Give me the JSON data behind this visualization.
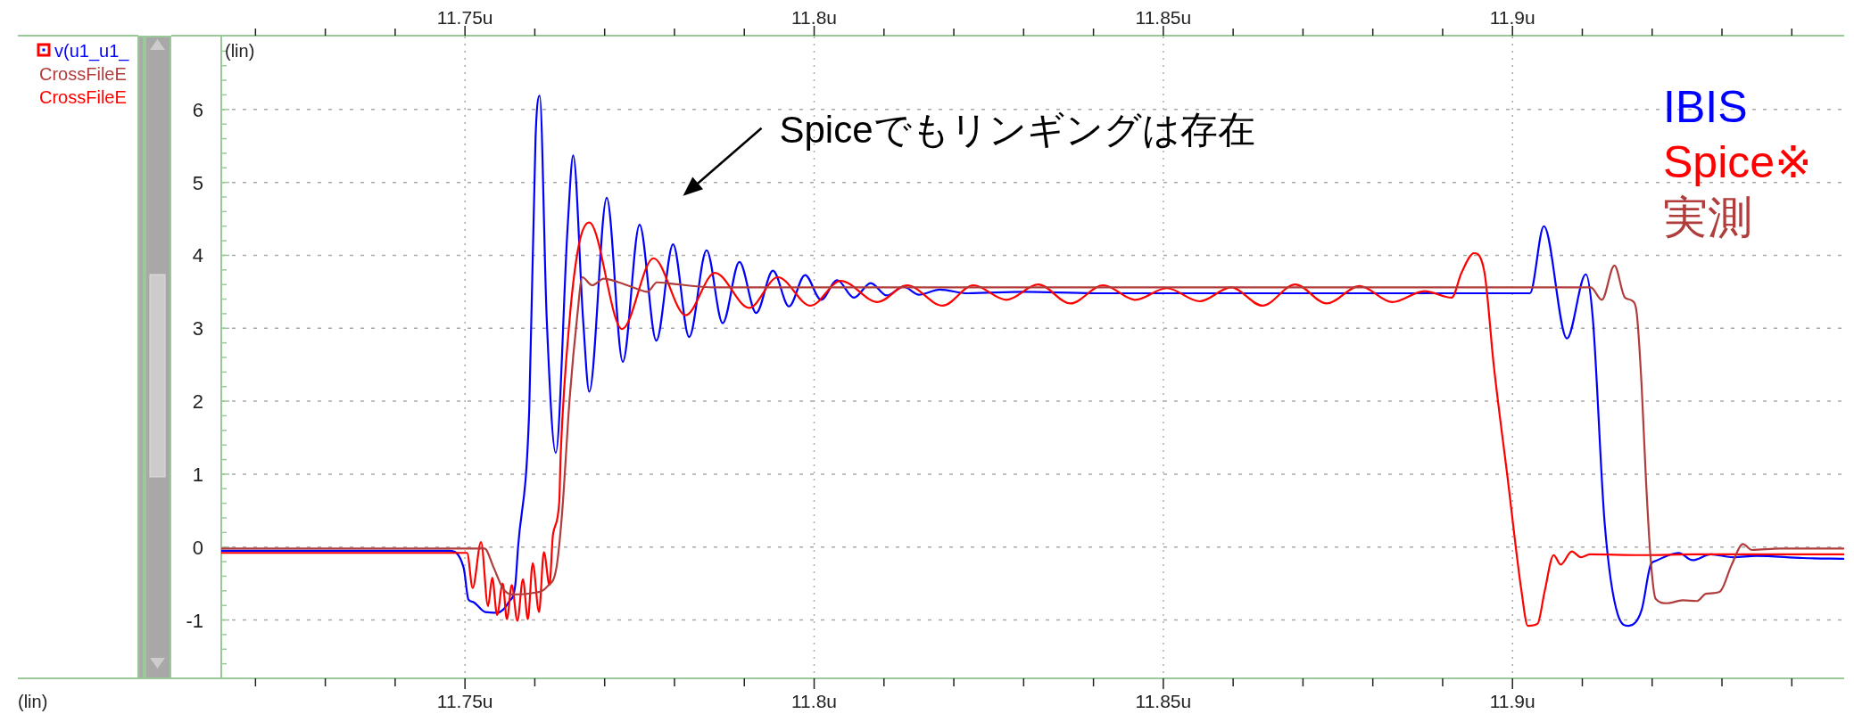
{
  "chart_data": {
    "type": "line",
    "ylabel": "(lin)",
    "xlim": [
      11.7151,
      11.9475
    ],
    "x2lim": [
      11.7151,
      11.9475
    ],
    "ylim": [
      -1.8,
      7.0
    ],
    "xticks": [
      {
        "value": 11.72,
        "label": null
      },
      {
        "value": 11.73,
        "label": null
      },
      {
        "value": 11.74,
        "label": null
      },
      {
        "value": 11.75,
        "label": "11.75u"
      },
      {
        "value": 11.76,
        "label": null
      },
      {
        "value": 11.77,
        "label": null
      },
      {
        "value": 11.78,
        "label": null
      },
      {
        "value": 11.79,
        "label": null
      },
      {
        "value": 11.8,
        "label": "11.8u"
      },
      {
        "value": 11.81,
        "label": null
      },
      {
        "value": 11.82,
        "label": null
      },
      {
        "value": 11.83,
        "label": null
      },
      {
        "value": 11.84,
        "label": null
      },
      {
        "value": 11.85,
        "label": "11.85u"
      },
      {
        "value": 11.86,
        "label": null
      },
      {
        "value": 11.87,
        "label": null
      },
      {
        "value": 11.88,
        "label": null
      },
      {
        "value": 11.89,
        "label": null
      },
      {
        "value": 11.9,
        "label": "11.9u"
      },
      {
        "value": 11.91,
        "label": null
      },
      {
        "value": 11.92,
        "label": null
      },
      {
        "value": 11.93,
        "label": null
      },
      {
        "value": 11.94,
        "label": null
      }
    ],
    "x2ticks": [
      {
        "value": 11.72,
        "label": null
      },
      {
        "value": 11.73,
        "label": null
      },
      {
        "value": 11.74,
        "label": null
      },
      {
        "value": 11.75,
        "label": "11.75u"
      },
      {
        "value": 11.76,
        "label": null
      },
      {
        "value": 11.77,
        "label": null
      },
      {
        "value": 11.78,
        "label": null
      },
      {
        "value": 11.79,
        "label": null
      },
      {
        "value": 11.8,
        "label": "11.8u"
      },
      {
        "value": 11.81,
        "label": null
      },
      {
        "value": 11.82,
        "label": null
      },
      {
        "value": 11.83,
        "label": null
      },
      {
        "value": 11.84,
        "label": null
      },
      {
        "value": 11.85,
        "label": "11.85u"
      },
      {
        "value": 11.86,
        "label": null
      },
      {
        "value": 11.87,
        "label": null
      },
      {
        "value": 11.88,
        "label": null
      },
      {
        "value": 11.89,
        "label": null
      },
      {
        "value": 11.9,
        "label": "11.9u"
      },
      {
        "value": 11.91,
        "label": null
      },
      {
        "value": 11.92,
        "label": null
      },
      {
        "value": 11.93,
        "label": null
      },
      {
        "value": 11.94,
        "label": null
      }
    ],
    "yticks": [
      {
        "value": -1.8,
        "label": null
      },
      {
        "value": -1.6,
        "label": null
      },
      {
        "value": -1.4,
        "label": null
      },
      {
        "value": -1.2,
        "label": null
      },
      -1,
      {
        "value": -0.8,
        "label": null
      },
      {
        "value": -0.6,
        "label": null
      },
      {
        "value": -0.4,
        "label": null
      },
      {
        "value": -0.2,
        "label": null
      },
      0,
      {
        "value": 0.2,
        "label": null
      },
      {
        "value": 0.4,
        "label": null
      },
      {
        "value": 0.6,
        "label": null
      },
      {
        "value": 0.8,
        "label": null
      },
      1,
      {
        "value": 1.2,
        "label": null
      },
      {
        "value": 1.4,
        "label": null
      },
      {
        "value": 1.6,
        "label": null
      },
      {
        "value": 1.8,
        "label": null
      },
      2,
      {
        "value": 2.2,
        "label": null
      },
      {
        "value": 2.4,
        "label": null
      },
      {
        "value": 2.6,
        "label": null
      },
      {
        "value": 2.8,
        "label": null
      },
      3,
      {
        "value": 3.2,
        "label": null
      },
      {
        "value": 3.4,
        "label": null
      },
      {
        "value": 3.6,
        "label": null
      },
      {
        "value": 3.8,
        "label": null
      },
      4,
      {
        "value": 4.2,
        "label": null
      },
      {
        "value": 4.4,
        "label": null
      },
      {
        "value": 4.6,
        "label": null
      },
      {
        "value": 4.8,
        "label": null
      },
      5,
      {
        "value": 5.2,
        "label": null
      },
      {
        "value": 5.4,
        "label": null
      },
      {
        "value": 5.6,
        "label": null
      },
      {
        "value": 5.8,
        "label": null
      },
      6,
      {
        "value": 6.2,
        "label": null
      },
      {
        "value": 6.4,
        "label": null
      },
      {
        "value": 6.6,
        "label": null
      },
      {
        "value": 6.8,
        "label": null
      }
    ],
    "grid": true,
    "legend": "right",
    "line_style": "solid",
    "series": [
      {
        "name": "IBIS",
        "color": "#0000ff",
        "x": [
          11.7151,
          11.7477,
          11.7498,
          11.7505,
          11.7511,
          11.7529,
          11.7546,
          11.7563,
          11.7572,
          11.7576,
          11.7592,
          11.7601,
          11.7607,
          11.7617,
          11.763,
          11.7647,
          11.7655,
          11.7669,
          11.7678,
          11.7703,
          11.7726,
          11.775,
          11.7774,
          11.7798,
          11.7821,
          11.7846,
          11.7869,
          11.7893,
          11.7917,
          11.7941,
          11.7964,
          11.7987,
          11.801,
          11.8033,
          11.8057,
          11.8081,
          11.8104,
          11.8128,
          11.815,
          11.818,
          11.822,
          11.83,
          11.84,
          11.9025,
          11.9045,
          11.9078,
          11.9105,
          11.9115,
          11.9132,
          11.9151,
          11.9166,
          11.9185,
          11.9198,
          11.9205,
          11.9238,
          11.9258,
          11.9284,
          11.9316,
          11.9349,
          11.9416,
          11.9474
        ],
        "values": [
          -0.05,
          -0.05,
          -0.28,
          -0.72,
          -0.75,
          -0.89,
          -0.9,
          -0.75,
          -0.52,
          0.0,
          1.88,
          5.6,
          6.19,
          3.14,
          1.29,
          4.39,
          5.37,
          3.14,
          2.13,
          4.79,
          2.54,
          4.42,
          2.83,
          4.15,
          2.88,
          4.07,
          3.07,
          3.91,
          3.21,
          3.79,
          3.3,
          3.73,
          3.39,
          3.66,
          3.42,
          3.62,
          3.45,
          3.57,
          3.46,
          3.53,
          3.48,
          3.5,
          3.48,
          3.48,
          4.4,
          2.86,
          3.74,
          3.14,
          0.33,
          -0.93,
          -1.08,
          -0.86,
          -0.24,
          -0.19,
          -0.08,
          -0.18,
          -0.1,
          -0.14,
          -0.12,
          -0.15,
          -0.16
        ]
      },
      {
        "name": "Spice※",
        "color": "#ff0000",
        "x": [
          11.7151,
          11.7503,
          11.7511,
          11.7523,
          11.7533,
          11.7539,
          11.7546,
          11.7554,
          11.756,
          11.7567,
          11.7575,
          11.7583,
          11.759,
          11.7597,
          11.7606,
          11.7613,
          11.7621,
          11.7626,
          11.7635,
          11.7637,
          11.765,
          11.7663,
          11.7678,
          11.7725,
          11.777,
          11.7816,
          11.7858,
          11.7907,
          11.7948,
          11.7995,
          11.8038,
          11.8091,
          11.8133,
          11.8184,
          11.8228,
          11.8275,
          11.8321,
          11.8367,
          11.8414,
          11.846,
          11.8505,
          11.8552,
          11.8597,
          11.8642,
          11.8689,
          11.8734,
          11.8781,
          11.8828,
          11.8874,
          11.8913,
          11.8927,
          11.8945,
          11.896,
          11.8973,
          11.8993,
          11.9013,
          11.9022,
          11.9036,
          11.9046,
          11.9059,
          11.9069,
          11.9085,
          11.9098,
          11.9111,
          11.9185,
          11.9261,
          11.9474
        ],
        "values": [
          -0.08,
          -0.08,
          -0.56,
          0.07,
          -0.81,
          -0.42,
          -0.93,
          -0.5,
          -0.99,
          -0.52,
          -1.01,
          -0.44,
          -0.99,
          -0.22,
          -0.89,
          -0.07,
          -0.52,
          0.17,
          0.62,
          1.26,
          3.14,
          4.14,
          4.45,
          2.99,
          3.96,
          3.18,
          3.76,
          3.28,
          3.7,
          3.31,
          3.65,
          3.36,
          3.59,
          3.31,
          3.59,
          3.39,
          3.6,
          3.34,
          3.59,
          3.39,
          3.55,
          3.37,
          3.56,
          3.31,
          3.6,
          3.34,
          3.58,
          3.36,
          3.51,
          3.42,
          3.76,
          4.03,
          3.76,
          2.51,
          0.95,
          -0.61,
          -1.08,
          -1.05,
          -0.61,
          -0.11,
          -0.24,
          -0.06,
          -0.14,
          -0.1,
          -0.11,
          -0.1,
          -0.1
        ]
      },
      {
        "name": "実測",
        "color": "#b03c3c",
        "x": [
          11.7151,
          11.7528,
          11.7541,
          11.7554,
          11.7567,
          11.7597,
          11.7618,
          11.7631,
          11.7639,
          11.765,
          11.7661,
          11.7668,
          11.7682,
          11.7699,
          11.772,
          11.7741,
          11.7761,
          11.7775,
          11.7797,
          11.7856,
          11.9112,
          11.9128,
          11.9146,
          11.9161,
          11.9171,
          11.9178,
          11.9185,
          11.9191,
          11.9198,
          11.9205,
          11.9221,
          11.9244,
          11.9264,
          11.9277,
          11.9297,
          11.9314,
          11.933,
          11.9343,
          11.9383,
          11.9474
        ],
        "values": [
          -0.02,
          -0.02,
          -0.28,
          -0.56,
          -0.65,
          -0.63,
          -0.54,
          -0.28,
          0.46,
          2.05,
          3.19,
          3.7,
          3.59,
          3.68,
          3.63,
          3.56,
          3.5,
          3.63,
          3.61,
          3.56,
          3.56,
          3.39,
          3.86,
          3.42,
          3.38,
          3.2,
          2.2,
          0.95,
          -0.18,
          -0.71,
          -0.77,
          -0.73,
          -0.74,
          -0.64,
          -0.61,
          -0.24,
          0.04,
          -0.04,
          -0.02,
          -0.02
        ]
      }
    ],
    "annotations": [
      "Spiceでもリンギングは存在",
      "(lin)",
      "v(u1_u1_",
      "CrossFileE",
      "CrossFileE"
    ]
  }
}
